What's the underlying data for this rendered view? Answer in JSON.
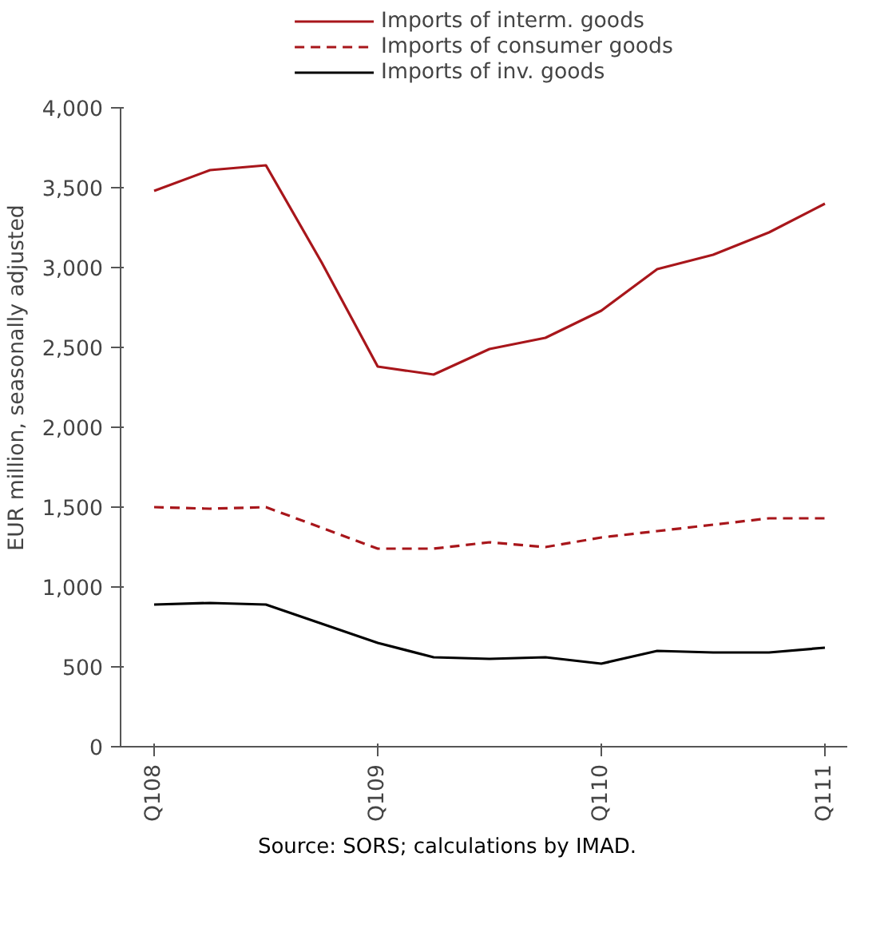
{
  "chart_data": {
    "type": "line",
    "ylabel": "EUR million, seasonally adjusted",
    "categories": [
      "Q108",
      null,
      null,
      null,
      "Q109",
      null,
      null,
      null,
      "Q110",
      null,
      null,
      null,
      "Q111"
    ],
    "series": [
      {
        "name": "Imports of interm. goods",
        "color": "#a8161b",
        "line_style": "solid",
        "values": [
          3480,
          3610,
          3640,
          3030,
          2380,
          2330,
          2490,
          2560,
          2730,
          2990,
          3080,
          3220,
          3400
        ]
      },
      {
        "name": "Imports of consumer goods",
        "color": "#a8161b",
        "line_style": "dashed",
        "values": [
          1500,
          1490,
          1500,
          1370,
          1240,
          1240,
          1280,
          1250,
          1310,
          1350,
          1390,
          1430,
          1430
        ]
      },
      {
        "name": "Imports of inv. goods",
        "color": "#000000",
        "line_style": "solid",
        "values": [
          890,
          900,
          890,
          770,
          650,
          560,
          550,
          560,
          520,
          600,
          590,
          590,
          620
        ]
      }
    ],
    "ylim": [
      0,
      4000
    ],
    "yticks": [
      0,
      500,
      {
        "value": 1000,
        "label": "1,000"
      },
      {
        "value": 1500,
        "label": "1,500"
      },
      {
        "value": 2000,
        "label": "2,000"
      },
      {
        "value": 2500,
        "label": "2,500"
      },
      {
        "value": 3000,
        "label": "3,000"
      },
      {
        "value": 3500,
        "label": "3,500"
      },
      {
        "value": 4000,
        "label": "4,000"
      }
    ],
    "grid": false,
    "legend": "top",
    "marker": "none",
    "annotations": [
      "Source: SORS; calculations by IMAD."
    ]
  }
}
